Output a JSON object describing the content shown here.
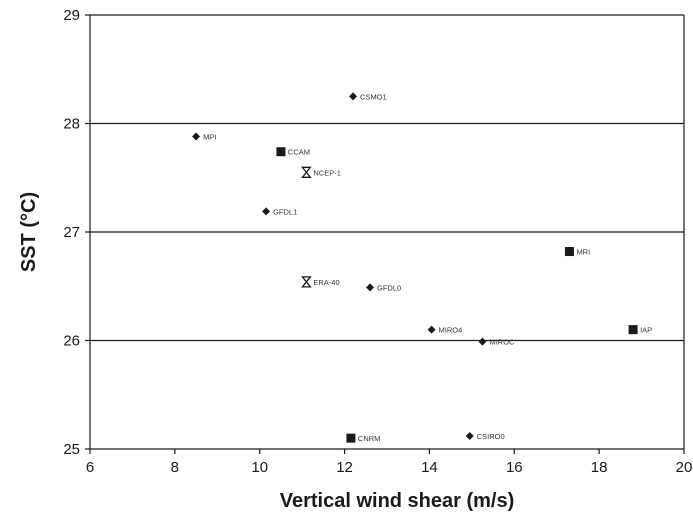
{
  "chart_data": {
    "type": "scatter",
    "title": "",
    "xlabel": "Vertical wind shear (m/s)",
    "ylabel": "SST (°C)",
    "xlim": [
      6,
      20
    ],
    "ylim": [
      25,
      29
    ],
    "x_ticks": [
      6,
      8,
      10,
      12,
      14,
      16,
      18,
      20
    ],
    "y_ticks": [
      25,
      26,
      27,
      28,
      29
    ],
    "grid": "horizontal",
    "legend": "none",
    "colors": {
      "marker": "#1a1a1a",
      "axis": "#1a1a1a",
      "grid": "#1a1a1a"
    },
    "points": [
      {
        "label": "CSMO1",
        "x": 12.2,
        "y": 28.25,
        "marker": "diamond"
      },
      {
        "label": "MPI",
        "x": 8.5,
        "y": 27.88,
        "marker": "diamond"
      },
      {
        "label": "CCAM",
        "x": 10.5,
        "y": 27.74,
        "marker": "square"
      },
      {
        "label": "NCEP-1",
        "x": 11.1,
        "y": 27.55,
        "marker": "hourglass"
      },
      {
        "label": "GFDL1",
        "x": 10.15,
        "y": 27.19,
        "marker": "diamond"
      },
      {
        "label": "MRI",
        "x": 17.3,
        "y": 26.82,
        "marker": "square"
      },
      {
        "label": "ERA-40",
        "x": 11.1,
        "y": 26.54,
        "marker": "hourglass"
      },
      {
        "label": "GFDL0",
        "x": 12.6,
        "y": 26.49,
        "marker": "diamond"
      },
      {
        "label": "MIRO4",
        "x": 14.05,
        "y": 26.1,
        "marker": "diamond"
      },
      {
        "label": "IAP",
        "x": 18.8,
        "y": 26.1,
        "marker": "square"
      },
      {
        "label": "MIROC",
        "x": 15.25,
        "y": 25.99,
        "marker": "diamond"
      },
      {
        "label": "CSIRO0",
        "x": 14.95,
        "y": 25.12,
        "marker": "diamond"
      },
      {
        "label": "CNRM",
        "x": 12.15,
        "y": 25.1,
        "marker": "square"
      }
    ]
  }
}
